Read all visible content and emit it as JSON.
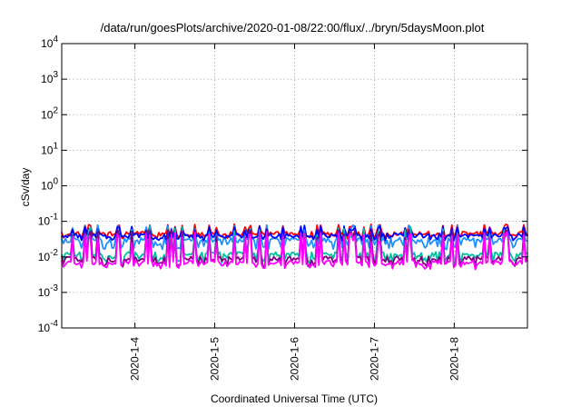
{
  "chart_data": {
    "type": "line",
    "title": "/data/run/goesPlots/archive/2020-01-08/22:00/flux/../bryn/5daysMoon.plot",
    "xlabel": "Coordinated Universal Time (UTC)",
    "ylabel": "cSv/day",
    "yscale": "log",
    "ylim": [
      0.0001,
      10000
    ],
    "xlim": [
      "2020-01-03 02:00",
      "2020-01-08 22:00"
    ],
    "grid": true,
    "y_ticks": [
      {
        "base": "10",
        "exp": "-4",
        "value": 0.0001
      },
      {
        "base": "10",
        "exp": "-3",
        "value": 0.001
      },
      {
        "base": "10",
        "exp": "-2",
        "value": 0.01
      },
      {
        "base": "10",
        "exp": "-1",
        "value": 0.1
      },
      {
        "base": "10",
        "exp": "0",
        "value": 1
      },
      {
        "base": "10",
        "exp": "1",
        "value": 10
      },
      {
        "base": "10",
        "exp": "2",
        "value": 100
      },
      {
        "base": "10",
        "exp": "3",
        "value": 1000
      },
      {
        "base": "10",
        "exp": "4",
        "value": 10000
      }
    ],
    "x_ticks": [
      {
        "label": "2020-1-4",
        "value": "2020-01-04"
      },
      {
        "label": "2020-1-5",
        "value": "2020-01-05"
      },
      {
        "label": "2020-1-6",
        "value": "2020-01-06"
      },
      {
        "label": "2020-1-7",
        "value": "2020-01-07"
      },
      {
        "label": "2020-1-8",
        "value": "2020-01-08"
      }
    ],
    "series": [
      {
        "color": "#ff0000",
        "baseline": 0.045,
        "spike_peak": 0.085,
        "dip": 0.04
      },
      {
        "color": "#0000ff",
        "baseline": 0.04,
        "spike_peak": 0.075,
        "dip": 0.035
      },
      {
        "color": "#00c0a0",
        "baseline": 0.012,
        "spike_peak": 0.07,
        "dip": 0.008
      },
      {
        "color": "#800080",
        "baseline": 0.009,
        "spike_peak": 0.06,
        "dip": 0.0065
      },
      {
        "color": "#ff00ff",
        "baseline": 0.007,
        "spike_peak": 0.05,
        "dip": 0.0055
      },
      {
        "color": "#1e90ff",
        "baseline": 0.03,
        "spike_peak": 0.08,
        "dip": 0.02
      }
    ]
  }
}
